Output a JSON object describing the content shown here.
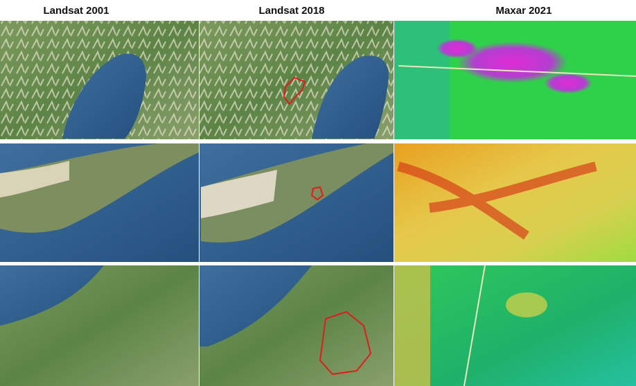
{
  "headers": [
    "Landsat 2001",
    "Landsat 2018",
    "Maxar 2021"
  ]
}
